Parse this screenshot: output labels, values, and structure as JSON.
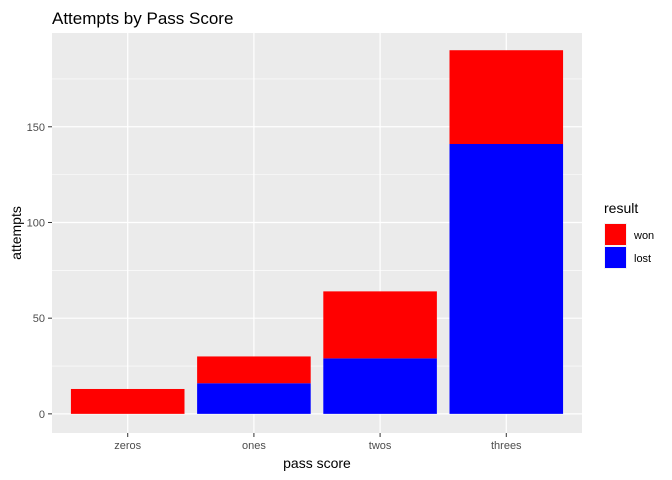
{
  "chart_data": {
    "type": "bar",
    "stacked": true,
    "title": "Attempts by Pass Score",
    "xlabel": "pass score",
    "ylabel": "attempts",
    "categories": [
      "zeros",
      "ones",
      "twos",
      "threes"
    ],
    "series": [
      {
        "name": "lost",
        "color": "#0000ff",
        "values": [
          0,
          16,
          29,
          141
        ]
      },
      {
        "name": "won",
        "color": "#ff0000",
        "values": [
          13,
          14,
          35,
          49
        ]
      }
    ],
    "yticks": [
      0,
      50,
      100,
      150
    ],
    "ylim": [
      -10,
      199
    ],
    "grid": true,
    "legend": {
      "title": "result",
      "position": "right",
      "items": [
        {
          "label": "won",
          "color": "#ff0000"
        },
        {
          "label": "lost",
          "color": "#0000ff"
        }
      ]
    },
    "panel_color": "#ebebeb"
  }
}
